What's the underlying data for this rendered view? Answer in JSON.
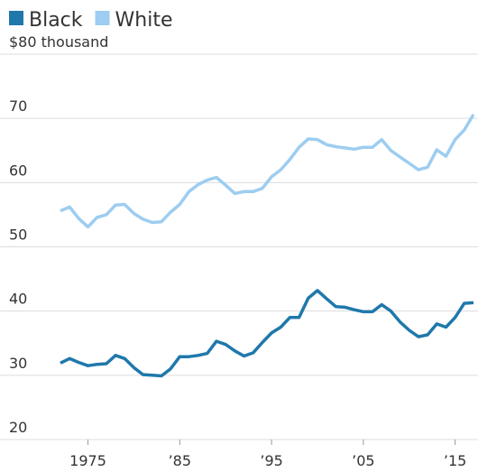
{
  "chart_data": {
    "type": "line",
    "x": [
      1972,
      1973,
      1974,
      1975,
      1976,
      1977,
      1978,
      1979,
      1980,
      1981,
      1982,
      1983,
      1984,
      1985,
      1986,
      1987,
      1988,
      1989,
      1990,
      1991,
      1992,
      1993,
      1994,
      1995,
      1996,
      1997,
      1998,
      1999,
      2000,
      2001,
      2002,
      2003,
      2004,
      2005,
      2006,
      2007,
      2008,
      2009,
      2010,
      2011,
      2012,
      2013,
      2014,
      2015,
      2016,
      2017
    ],
    "series": [
      {
        "name": "Black",
        "color": "#1f78ab",
        "values": [
          31.9,
          32.6,
          32.0,
          31.5,
          31.7,
          31.8,
          33.1,
          32.6,
          31.2,
          30.1,
          30.0,
          29.9,
          31.0,
          32.9,
          32.9,
          33.1,
          33.4,
          35.3,
          34.8,
          33.8,
          33.0,
          33.5,
          35.1,
          36.6,
          37.5,
          39.0,
          39.0,
          42.0,
          43.2,
          41.9,
          40.7,
          40.6,
          40.2,
          39.9,
          39.9,
          41.0,
          40.0,
          38.3,
          37.0,
          36.0,
          36.3,
          38.0,
          37.5,
          39.0,
          41.2,
          41.3
        ]
      },
      {
        "name": "White",
        "color": "#9dcdf0",
        "values": [
          55.6,
          56.2,
          54.4,
          53.1,
          54.6,
          55.0,
          56.5,
          56.6,
          55.2,
          54.3,
          53.8,
          53.9,
          55.4,
          56.6,
          58.6,
          59.7,
          60.4,
          60.8,
          59.6,
          58.3,
          58.6,
          58.6,
          59.1,
          60.9,
          62.0,
          63.6,
          65.5,
          66.8,
          66.7,
          65.9,
          65.6,
          65.4,
          65.2,
          65.5,
          65.5,
          66.7,
          65.0,
          64.0,
          63.0,
          62.0,
          62.4,
          65.1,
          64.1,
          66.7,
          68.2,
          70.6
        ]
      }
    ],
    "xlim": [
      1972,
      2017
    ],
    "xticks": [
      1975,
      {
        "value": 1985,
        "label": "’85"
      },
      {
        "value": 1995,
        "label": "’95"
      },
      {
        "value": 2005,
        "label": "’05"
      },
      {
        "value": 2015,
        "label": "’15"
      }
    ],
    "ylim": [
      20,
      80
    ],
    "yticks": [
      20,
      30,
      40,
      50,
      60,
      70,
      {
        "value": 80,
        "label": "$80 thousand"
      }
    ],
    "grid": true
  }
}
